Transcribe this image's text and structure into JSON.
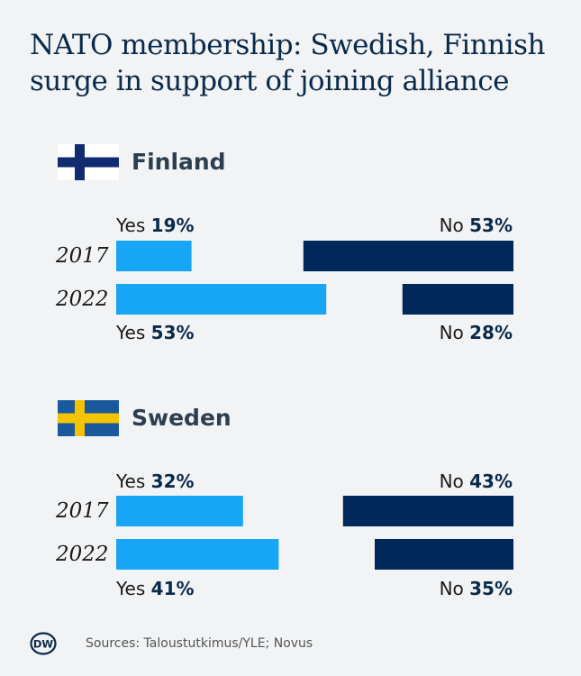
{
  "title": "NATO membership: Swedish, Finnish surge in support of joining alliance",
  "chart_data": [
    {
      "type": "bar",
      "title": "Finland",
      "flag_icon": "finland-flag-icon",
      "categories": [
        "2017",
        "2022"
      ],
      "series": [
        {
          "name": "Yes",
          "values": [
            19,
            53
          ],
          "color": "#16a6f5"
        },
        {
          "name": "No",
          "values": [
            53,
            28
          ],
          "color": "#00285a"
        }
      ],
      "labels": {
        "yes_word": "Yes",
        "no_word": "No"
      }
    },
    {
      "type": "bar",
      "title": "Sweden",
      "flag_icon": "sweden-flag-icon",
      "categories": [
        "2017",
        "2022"
      ],
      "series": [
        {
          "name": "Yes",
          "values": [
            32,
            41
          ],
          "color": "#16a6f5"
        },
        {
          "name": "No",
          "values": [
            43,
            35
          ],
          "color": "#00285a"
        }
      ],
      "labels": {
        "yes_word": "Yes",
        "no_word": "No"
      }
    }
  ],
  "footer": {
    "logo_text": "DW",
    "source": "Sources: Taloustutkimus/YLE; Novus"
  }
}
